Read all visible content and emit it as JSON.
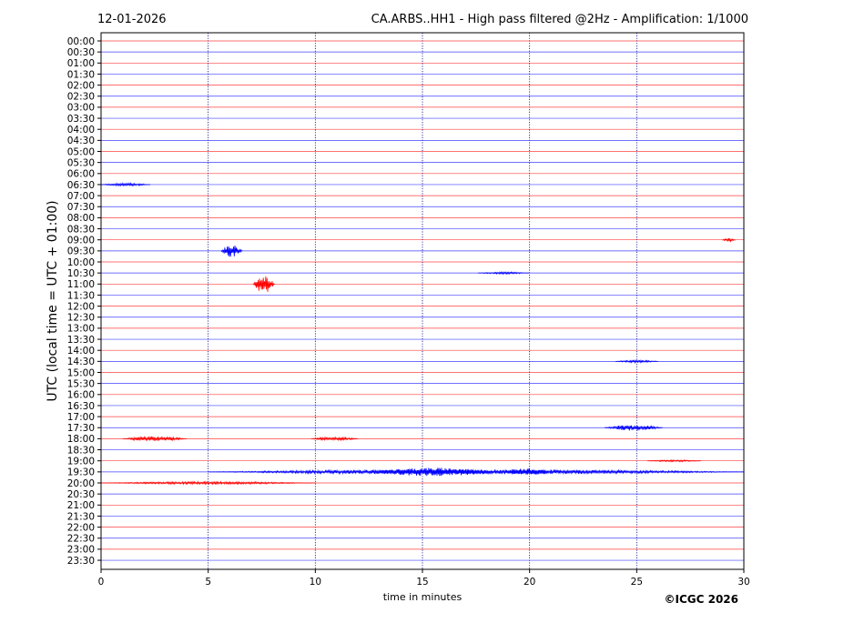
{
  "header": {
    "date": "12-01-2026",
    "title": "CA.ARBS..HH1 - High pass filtered @2Hz - Amplification: 1/1000"
  },
  "footer": {
    "copyright": "©ICGC 2026"
  },
  "chart_data": {
    "type": "line",
    "title": "CA.ARBS..HH1 - High pass filtered @2Hz - Amplification: 1/1000",
    "xlabel": "time in minutes",
    "ylabel": "UTC (local time = UTC + 01:00)",
    "xlim": [
      0,
      30
    ],
    "x_ticks": [
      0,
      5,
      10,
      15,
      20,
      25,
      30
    ],
    "grid": {
      "vertical_dotted_at": [
        5,
        10,
        15,
        20,
        25
      ]
    },
    "trace_colors": [
      "#ff0000",
      "#0000ff"
    ],
    "rows": [
      "00:00",
      "00:30",
      "01:00",
      "01:30",
      "02:00",
      "02:30",
      "03:00",
      "03:30",
      "04:00",
      "04:30",
      "05:00",
      "05:30",
      "06:00",
      "06:30",
      "07:00",
      "07:30",
      "08:00",
      "08:30",
      "09:00",
      "09:30",
      "10:00",
      "10:30",
      "11:00",
      "11:30",
      "12:00",
      "12:30",
      "13:00",
      "13:30",
      "14:00",
      "14:30",
      "15:00",
      "15:30",
      "16:00",
      "16:30",
      "17:00",
      "17:30",
      "18:00",
      "18:30",
      "19:00",
      "19:30",
      "20:00",
      "20:30",
      "21:00",
      "21:30",
      "22:00",
      "22:30",
      "23:00",
      "23:30"
    ],
    "events": [
      {
        "row": "06:30",
        "start": 0.0,
        "end": 2.3,
        "amplitude": 1.2
      },
      {
        "row": "09:00",
        "start": 29.0,
        "end": 29.6,
        "amplitude": 1.5
      },
      {
        "row": "09:30",
        "start": 5.6,
        "end": 6.6,
        "amplitude": 5.5
      },
      {
        "row": "10:30",
        "start": 17.6,
        "end": 20.0,
        "amplitude": 0.8
      },
      {
        "row": "11:00",
        "start": 7.1,
        "end": 8.1,
        "amplitude": 8.0
      },
      {
        "row": "14:30",
        "start": 24.0,
        "end": 26.0,
        "amplitude": 1.0
      },
      {
        "row": "17:30",
        "start": 23.5,
        "end": 26.2,
        "amplitude": 2.4
      },
      {
        "row": "18:00",
        "start": 1.0,
        "end": 4.0,
        "amplitude": 2.0
      },
      {
        "row": "18:00",
        "start": 9.8,
        "end": 12.0,
        "amplitude": 1.5
      },
      {
        "row": "19:00",
        "start": 25.5,
        "end": 28.0,
        "amplitude": 0.8
      },
      {
        "row": "19:30",
        "start": 5.0,
        "end": 30.0,
        "amplitude": 2.0
      },
      {
        "row": "19:30",
        "start": 12.5,
        "end": 18.5,
        "amplitude": 3.5
      },
      {
        "row": "19:30",
        "start": 18.8,
        "end": 21.0,
        "amplitude": 2.8
      },
      {
        "row": "20:00",
        "start": 0.0,
        "end": 10.0,
        "amplitude": 1.0
      }
    ]
  }
}
